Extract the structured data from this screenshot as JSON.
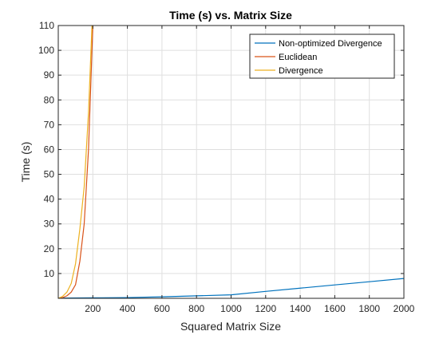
{
  "colors": {
    "background": "#ffffff",
    "axes_background": "#ffffff",
    "axis": "#262626",
    "grid": "#dfdfdf",
    "legend_border": "#262626"
  },
  "chart_data": {
    "type": "line",
    "title": "Time (s) vs. Matrix Size",
    "xlabel": "Squared Matrix Size",
    "ylabel": "Time (s)",
    "xlim": [
      0,
      2000
    ],
    "ylim": [
      0,
      110
    ],
    "xticks": [
      200,
      400,
      600,
      800,
      1000,
      1200,
      1400,
      1600,
      1800,
      2000
    ],
    "yticks": [
      10,
      20,
      30,
      40,
      50,
      60,
      70,
      80,
      90,
      100,
      110
    ],
    "grid": true,
    "legend_position": "top-right",
    "series": [
      {
        "name": "Non-optimized Divergence",
        "color": "#0072BD",
        "x": [
          0,
          200,
          400,
          600,
          800,
          1000,
          1200,
          1400,
          1600,
          1800,
          2000
        ],
        "y": [
          0.1,
          0.2,
          0.3,
          0.6,
          1.0,
          1.4,
          2.8,
          4.1,
          5.4,
          6.7,
          8.0
        ]
      },
      {
        "name": "Euclidean",
        "color": "#D95319",
        "x": [
          0,
          25,
          50,
          75,
          100,
          125,
          150,
          175,
          200
        ],
        "y": [
          0,
          0.3,
          1.0,
          2.5,
          5.5,
          15,
          30,
          60,
          110
        ]
      },
      {
        "name": "Divergence",
        "color": "#EDB120",
        "x": [
          0,
          25,
          50,
          75,
          100,
          125,
          150,
          175,
          195
        ],
        "y": [
          0,
          0.8,
          2.5,
          6.0,
          14,
          28,
          45,
          75,
          110
        ]
      }
    ]
  }
}
